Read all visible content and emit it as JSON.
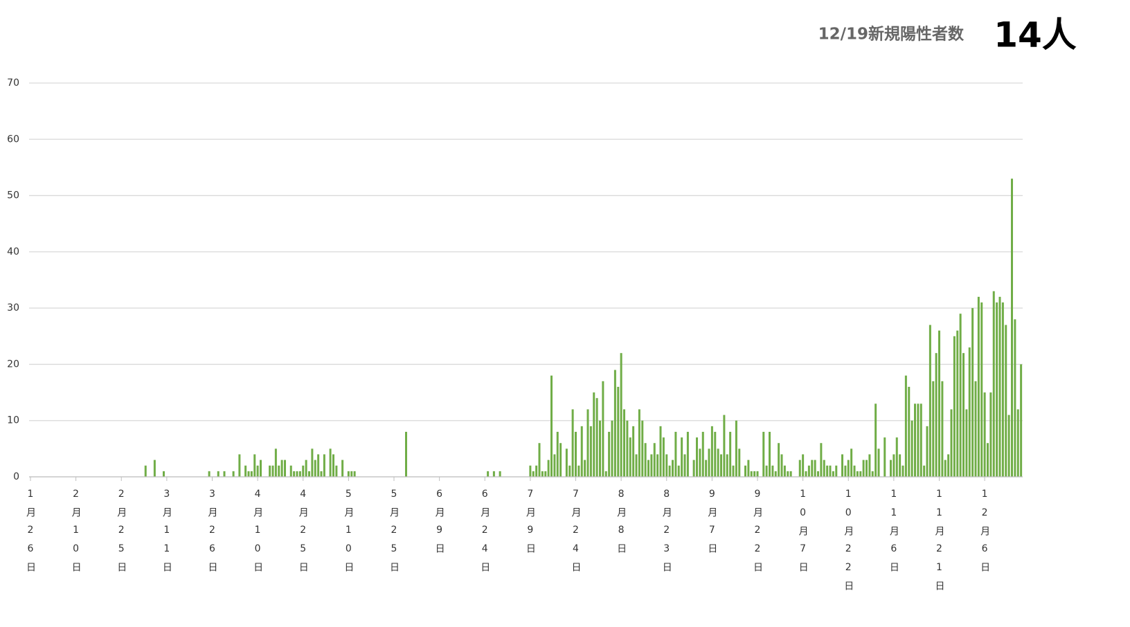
{
  "chart_data": {
    "type": "bar",
    "title": "12/19新規陽性者数",
    "annotations": [
      "14人"
    ],
    "color": "#70ad47",
    "grid": true,
    "ylim": [
      0,
      70
    ],
    "yticks": [
      0,
      10,
      20,
      30,
      40,
      50,
      60,
      70
    ],
    "categories": [
      "1月26日",
      null,
      null,
      null,
      null,
      null,
      null,
      null,
      null,
      null,
      null,
      null,
      null,
      null,
      null,
      "2月10日",
      null,
      null,
      null,
      null,
      null,
      null,
      null,
      null,
      null,
      null,
      null,
      null,
      null,
      null,
      "2月25日",
      null,
      null,
      null,
      null,
      null,
      null,
      null,
      null,
      null,
      null,
      null,
      null,
      null,
      null,
      "3月11日",
      null,
      null,
      null,
      null,
      null,
      null,
      null,
      null,
      null,
      null,
      null,
      null,
      null,
      null,
      "3月26日",
      null,
      null,
      null,
      null,
      null,
      null,
      null,
      null,
      null,
      null,
      null,
      null,
      null,
      null,
      "4月10日",
      null,
      null,
      null,
      null,
      null,
      null,
      null,
      null,
      null,
      null,
      null,
      null,
      null,
      null,
      "4月25日",
      null,
      null,
      null,
      null,
      null,
      null,
      null,
      null,
      null,
      null,
      null,
      null,
      null,
      null,
      "5月10日",
      null,
      null,
      null,
      null,
      null,
      null,
      null,
      null,
      null,
      null,
      null,
      null,
      null,
      null,
      "5月25日",
      null,
      null,
      null,
      null,
      null,
      null,
      null,
      null,
      null,
      null,
      null,
      null,
      null,
      null,
      "6月9日",
      null,
      null,
      null,
      null,
      null,
      null,
      null,
      null,
      null,
      null,
      null,
      null,
      null,
      null,
      "6月24日",
      null,
      null,
      null,
      null,
      null,
      null,
      null,
      null,
      null,
      null,
      null,
      null,
      null,
      null,
      "7月9日",
      null,
      null,
      null,
      null,
      null,
      null,
      null,
      null,
      null,
      null,
      null,
      null,
      null,
      null,
      "7月24日",
      null,
      null,
      null,
      null,
      null,
      null,
      null,
      null,
      null,
      null,
      null,
      null,
      null,
      null,
      "8月8日",
      null,
      null,
      null,
      null,
      null,
      null,
      null,
      null,
      null,
      null,
      null,
      null,
      null,
      null,
      "8月23日",
      null,
      null,
      null,
      null,
      null,
      null,
      null,
      null,
      null,
      null,
      null,
      null,
      null,
      null,
      "9月7日",
      null,
      null,
      null,
      null,
      null,
      null,
      null,
      null,
      null,
      null,
      null,
      null,
      null,
      null,
      "9月22日",
      null,
      null,
      null,
      null,
      null,
      null,
      null,
      null,
      null,
      null,
      null,
      null,
      null,
      null,
      "10月7日",
      null,
      null,
      null,
      null,
      null,
      null,
      null,
      null,
      null,
      null,
      null,
      null,
      null,
      null,
      "10月22日",
      null,
      null,
      null,
      null,
      null,
      null,
      null,
      null,
      null,
      null,
      null,
      null,
      null,
      null,
      "11月6日",
      null,
      null,
      null,
      null,
      null,
      null,
      null,
      null,
      null,
      null,
      null,
      null,
      null,
      null,
      "11月21日",
      null,
      null,
      null,
      null,
      null,
      null,
      null,
      null,
      null,
      null,
      null,
      null,
      null,
      null,
      "12月6日",
      null,
      null,
      null,
      null,
      null,
      null,
      null,
      null,
      null,
      null,
      null,
      null
    ],
    "values": [
      0,
      0,
      0,
      0,
      0,
      0,
      0,
      0,
      0,
      0,
      0,
      0,
      0,
      0,
      0,
      0,
      0,
      0,
      0,
      0,
      0,
      0,
      0,
      0,
      0,
      0,
      0,
      0,
      0,
      0,
      0,
      0,
      0,
      0,
      0,
      0,
      0,
      0,
      2,
      0,
      0,
      3,
      0,
      0,
      1,
      0,
      0,
      0,
      0,
      0,
      0,
      0,
      0,
      0,
      0,
      0,
      0,
      0,
      0,
      1,
      0,
      0,
      1,
      0,
      1,
      0,
      0,
      1,
      0,
      4,
      0,
      2,
      1,
      1,
      4,
      2,
      3,
      0,
      0,
      2,
      2,
      5,
      2,
      3,
      3,
      0,
      2,
      1,
      1,
      1,
      2,
      3,
      1,
      5,
      3,
      4,
      1,
      4,
      0,
      5,
      4,
      2,
      0,
      3,
      0,
      1,
      1,
      1,
      0,
      0,
      0,
      0,
      0,
      0,
      0,
      0,
      0,
      0,
      0,
      0,
      0,
      0,
      0,
      0,
      8,
      0,
      0,
      0,
      0,
      0,
      0,
      0,
      0,
      0,
      0,
      0,
      0,
      0,
      0,
      0,
      0,
      0,
      0,
      0,
      0,
      0,
      0,
      0,
      0,
      0,
      0,
      1,
      0,
      1,
      0,
      1,
      0,
      0,
      0,
      0,
      0,
      0,
      0,
      0,
      0,
      2,
      1,
      2,
      6,
      1,
      1,
      3,
      18,
      4,
      8,
      6,
      0,
      5,
      2,
      12,
      8,
      2,
      9,
      3,
      12,
      9,
      15,
      14,
      10,
      17,
      1,
      8,
      10,
      19,
      16,
      22,
      12,
      10,
      7,
      9,
      4,
      12,
      10,
      6,
      3,
      4,
      6,
      4,
      9,
      7,
      4,
      2,
      3,
      8,
      2,
      7,
      4,
      8,
      0,
      3,
      7,
      5,
      8,
      3,
      5,
      9,
      8,
      5,
      4,
      11,
      4,
      8,
      2,
      10,
      5,
      0,
      2,
      3,
      1,
      1,
      1,
      0,
      8,
      2,
      8,
      2,
      1,
      6,
      4,
      2,
      1,
      1,
      0,
      0,
      3,
      4,
      1,
      2,
      3,
      3,
      1,
      6,
      3,
      2,
      2,
      1,
      2,
      0,
      4,
      2,
      3,
      5,
      2,
      1,
      1,
      3,
      3,
      4,
      1,
      13,
      5,
      0,
      7,
      0,
      3,
      4,
      7,
      4,
      2,
      18,
      16,
      10,
      13,
      13,
      13,
      2,
      9,
      27,
      17,
      22,
      26,
      17,
      3,
      4,
      12,
      25,
      26,
      29,
      22,
      12,
      23,
      30,
      17,
      32,
      31,
      15,
      6,
      15,
      33,
      31,
      32,
      31,
      27,
      11,
      53,
      28,
      12,
      20
    ]
  }
}
